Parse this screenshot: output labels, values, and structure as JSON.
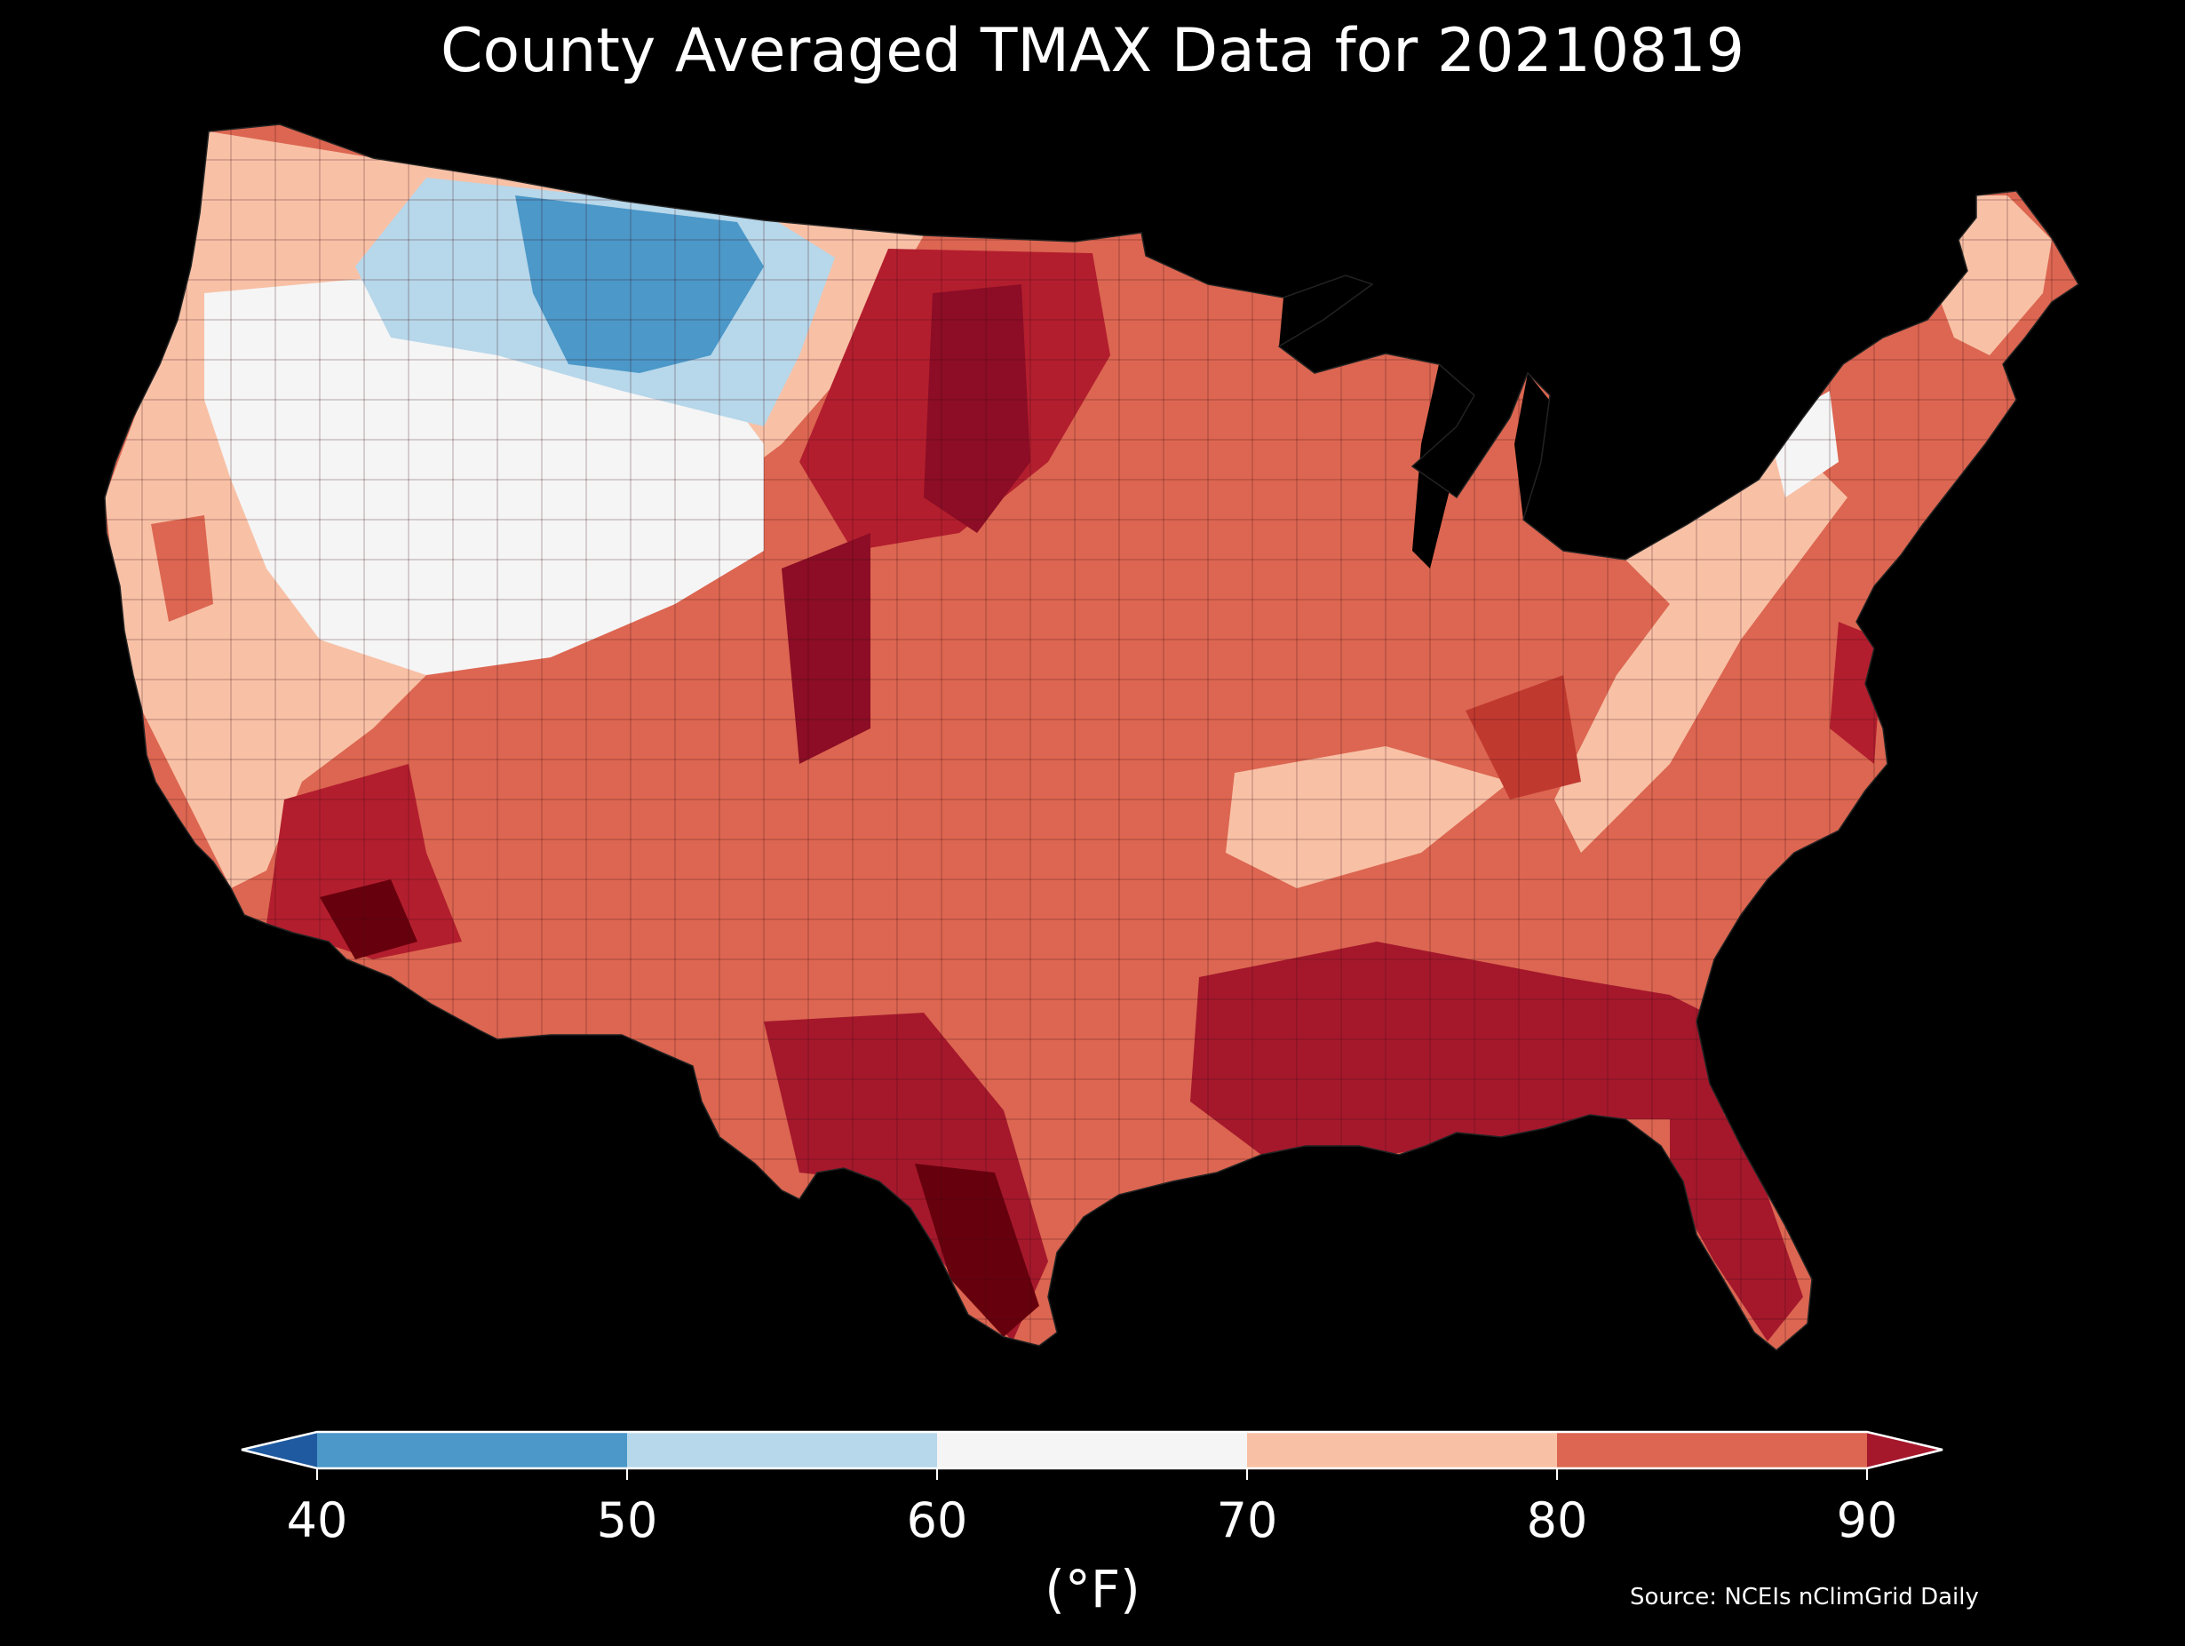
{
  "title": "County Averaged TMAX Data for 20210819",
  "colorbar": {
    "unit_label": "(°F)",
    "ticks": [
      "40",
      "50",
      "60",
      "70",
      "80",
      "90"
    ],
    "bins": [
      {
        "range": "<40",
        "color": "#1f5aa0"
      },
      {
        "range": "40-50",
        "color": "#4b98c9"
      },
      {
        "range": "50-60",
        "color": "#b7d7ea"
      },
      {
        "range": "60-70",
        "color": "#f5f5f5"
      },
      {
        "range": "70-80",
        "color": "#f8c1a6"
      },
      {
        "range": "80-90",
        "color": "#dc6651"
      },
      {
        "range": ">90",
        "color": "#a5182c"
      }
    ]
  },
  "source": "Source: NCEIs nClimGrid Daily",
  "map": {
    "region": "Contiguous United States (county choropleth)",
    "regions_tmax_f": [
      {
        "area": "Northern Rockies / Montana / Wyoming",
        "bin": "40-50"
      },
      {
        "area": "Idaho / Western Montana",
        "bin": "50-60"
      },
      {
        "area": "Great Basin / Nevada / Utah",
        "bin": "60-70"
      },
      {
        "area": "Pacific Northwest / Oregon",
        "bin": "70-80"
      },
      {
        "area": "Great Plains / Texas / Southeast",
        "bin": "80-90"
      },
      {
        "area": "Desert Southwest / South Texas / Central Plains",
        "bin": ">90"
      },
      {
        "area": "Appalachians / Northeast interior",
        "bin": "70-80"
      }
    ]
  }
}
